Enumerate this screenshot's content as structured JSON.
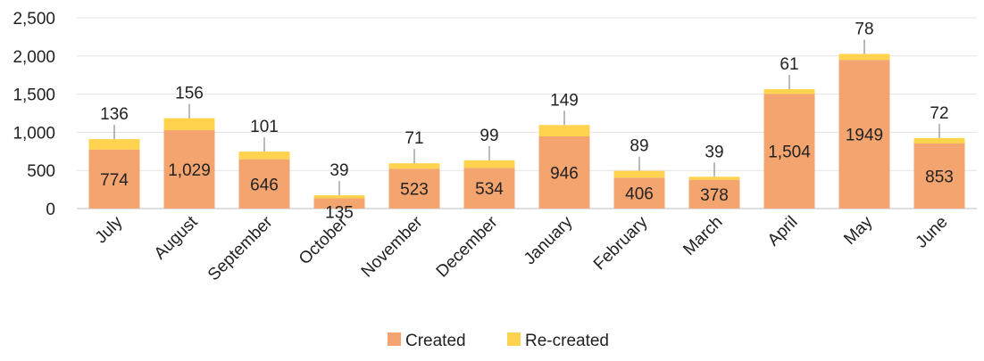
{
  "chart_data": {
    "type": "bar",
    "stacked": true,
    "categories": [
      "July",
      "August",
      "September",
      "October",
      "November",
      "December",
      "January",
      "February",
      "March",
      "April",
      "May",
      "June"
    ],
    "series": [
      {
        "name": "Created",
        "values": [
          774,
          1029,
          646,
          135,
          523,
          534,
          946,
          406,
          378,
          1504,
          1949,
          853
        ],
        "labels": [
          "774",
          "1,029",
          "646",
          "135",
          "523",
          "534",
          "946",
          "406",
          "378",
          "1,504",
          "1949",
          "853"
        ],
        "color": "#F4A46E"
      },
      {
        "name": "Re-created",
        "values": [
          136,
          156,
          101,
          39,
          71,
          99,
          149,
          89,
          39,
          61,
          78,
          72
        ],
        "labels": [
          "136",
          "156",
          "101",
          "39",
          "71",
          "99",
          "149",
          "89",
          "39",
          "61",
          "78",
          "72"
        ],
        "color": "#FFD34E"
      }
    ],
    "yticks": [
      "0",
      "500",
      "1,000",
      "1,500",
      "2,000",
      "2,500"
    ],
    "ytick_values": [
      0,
      500,
      1000,
      1500,
      2000,
      2500
    ],
    "ylim": [
      0,
      2500
    ],
    "grid": true,
    "legend_position": "bottom"
  }
}
